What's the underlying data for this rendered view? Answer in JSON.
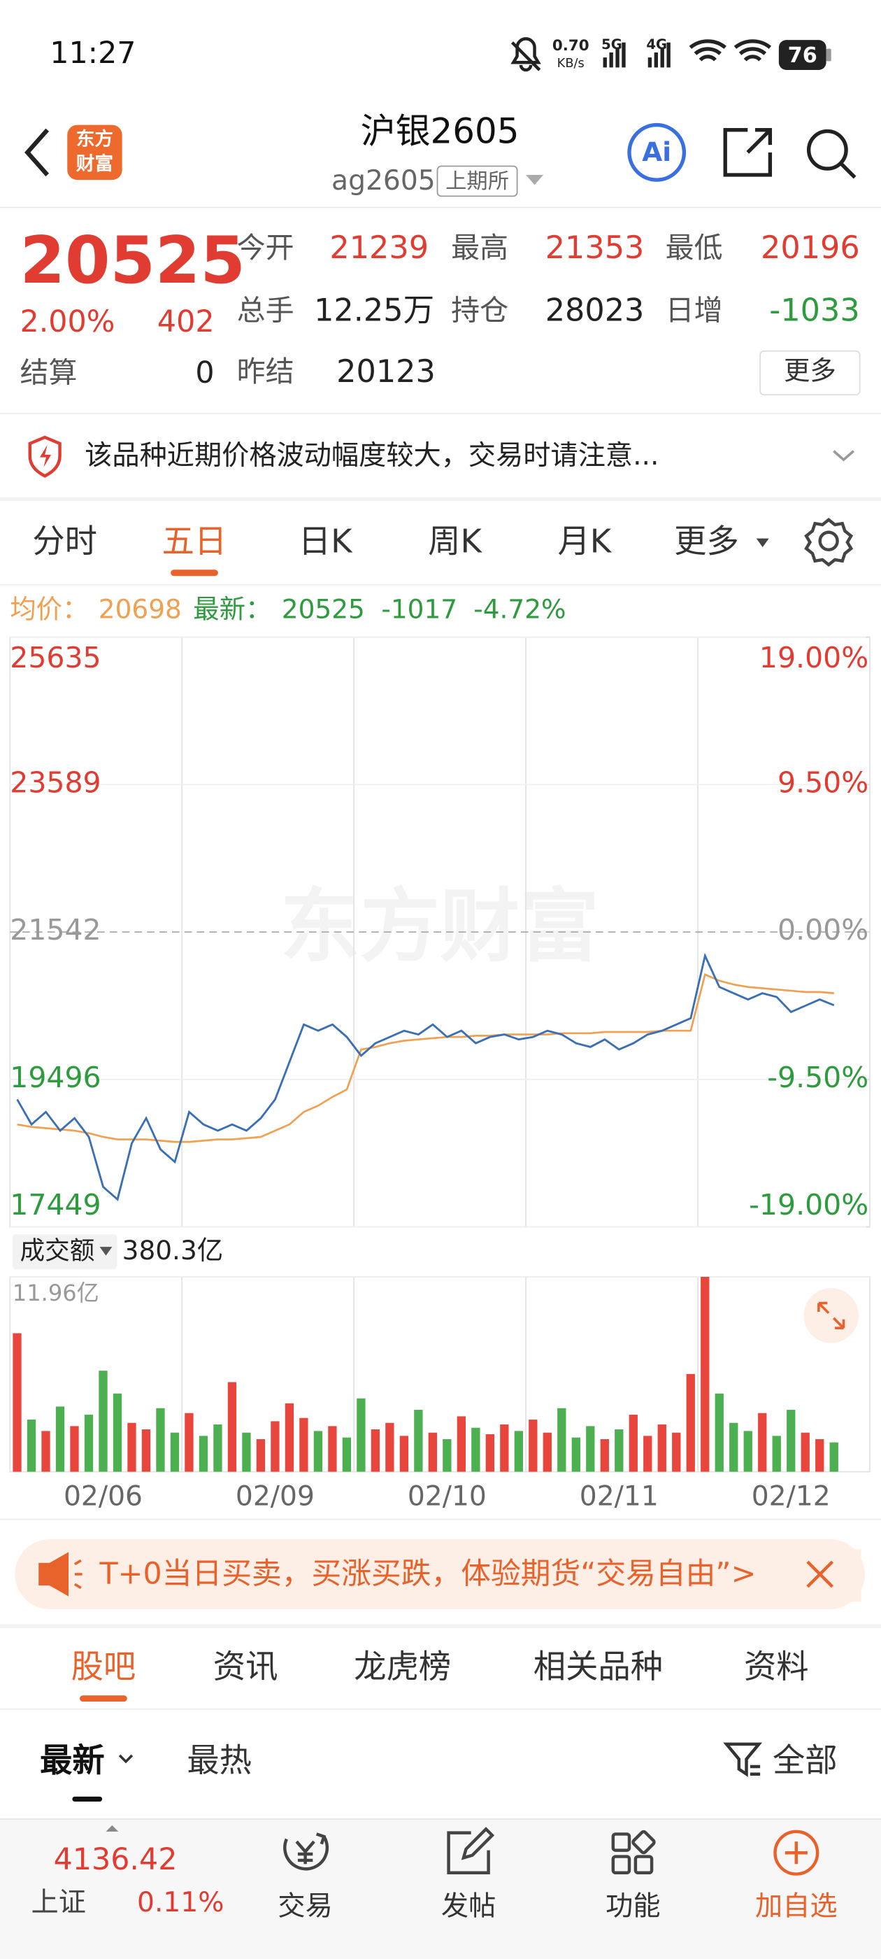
{
  "status_bar": {
    "time": "11:27",
    "net_speed": "0.70",
    "net_unit": "KB/s",
    "signal_1": "5G",
    "signal_2": "4G",
    "battery": "76"
  },
  "header": {
    "logo_top": "东方",
    "logo_bottom": "财富",
    "title": "沪银2605",
    "code": "ag2605",
    "exchange": "上期所",
    "ai": "Ai"
  },
  "quote": {
    "price": "20525",
    "change_pct": "2.00%",
    "change": "402",
    "settle_label": "结算",
    "settle": "0",
    "fields": [
      {
        "label": "今开",
        "value": "21239",
        "color": "#e03c31"
      },
      {
        "label": "最高",
        "value": "21353",
        "color": "#e03c31"
      },
      {
        "label": "最低",
        "value": "20196",
        "color": "#e03c31"
      },
      {
        "label": "总手",
        "value": "12.25万",
        "color": "#222222"
      },
      {
        "label": "持仓",
        "value": "28023",
        "color": "#222222"
      },
      {
        "label": "日增",
        "value": "-1033",
        "color": "#2e9b3e"
      },
      {
        "label": "昨结",
        "value": "20123",
        "color": "#222222"
      }
    ],
    "more": "更多"
  },
  "notice": "该品种近期价格波动幅度较大，交易时请注意...",
  "period_tabs": {
    "items": [
      "分时",
      "五日",
      "日K",
      "周K",
      "月K",
      "更多"
    ],
    "active": 1
  },
  "chart_data": [
    {
      "type": "line",
      "watermark": "东方财富",
      "legend": {
        "avg_label": "均价：",
        "avg_value": "20698",
        "last_label": "最新：",
        "last_value": "20525",
        "last_change": "-1017",
        "last_change_pct": "-4.72%"
      },
      "ylim": [
        17449,
        25635
      ],
      "yticks": [
        17449,
        19496,
        21542,
        23589,
        25635
      ],
      "y2lim": [
        -19,
        19
      ],
      "y2ticks": [
        {
          "value": -19,
          "label": "-19.00%"
        },
        {
          "value": -9.5,
          "label": "-9.50%"
        },
        {
          "value": 0,
          "label": "0.00%"
        },
        {
          "value": 9.5,
          "label": "9.50%"
        },
        {
          "value": 19,
          "label": "19.00%"
        }
      ],
      "up_color": "#e03c31",
      "down_color": "#2e9b3e",
      "flat_color": "#999999",
      "series": [
        {
          "color": "#3a6fb5",
          "values": [
            19218,
            18871,
            19045,
            18785,
            18958,
            18698,
            18004,
            17831,
            18611,
            18958,
            18524,
            18351,
            19045,
            18871,
            18785,
            18871,
            18785,
            18958,
            19218,
            19738,
            20259,
            20172,
            20259,
            20085,
            19825,
            19999,
            20085,
            20172,
            20120,
            20259,
            20085,
            20172,
            19999,
            20085,
            20120,
            20051,
            20085,
            20172,
            20120,
            19999,
            19947,
            20051,
            19912,
            19999,
            20120,
            20172,
            20259,
            20345,
            21213,
            20779,
            20692,
            20606,
            20692,
            20640,
            20432,
            20519,
            20606,
            20525,
            null,
            null
          ]
        },
        {
          "color": "#f0a050",
          "values": [
            18871,
            18837,
            18819,
            18802,
            18785,
            18750,
            18698,
            18663,
            18663,
            18663,
            18645,
            18628,
            18628,
            18645,
            18663,
            18663,
            18681,
            18698,
            18785,
            18871,
            19045,
            19131,
            19253,
            19357,
            19912,
            19947,
            19999,
            20033,
            20051,
            20068,
            20085,
            20085,
            20103,
            20103,
            20120,
            20120,
            20120,
            20120,
            20137,
            20137,
            20137,
            20155,
            20155,
            20155,
            20155,
            20172,
            20172,
            20172,
            20952,
            20866,
            20814,
            20779,
            20762,
            20745,
            20727,
            20710,
            20710,
            20692,
            null,
            null
          ]
        }
      ]
    },
    {
      "type": "bar",
      "selector": "成交额",
      "total": "380.3亿",
      "ylim": [
        0,
        11.96
      ],
      "yticks": [
        {
          "value": 11.96,
          "label": "11.96亿"
        }
      ],
      "up_color": "#e8453c",
      "down_color": "#4caf50",
      "categories": [
        null,
        null,
        null,
        null,
        null,
        null,
        "02/06",
        null,
        null,
        null,
        null,
        null,
        null,
        null,
        null,
        null,
        null,
        null,
        "02/09",
        null,
        null,
        null,
        null,
        null,
        null,
        null,
        null,
        null,
        null,
        null,
        "02/10",
        null,
        null,
        null,
        null,
        null,
        null,
        null,
        null,
        null,
        null,
        null,
        "02/11",
        null,
        null,
        null,
        null,
        null,
        null,
        null,
        null,
        null,
        null,
        null,
        "02/12",
        null,
        null,
        null,
        null,
        null
      ],
      "values": [
        8.5,
        3.2,
        2.5,
        4.0,
        2.8,
        3.5,
        6.2,
        4.8,
        3.0,
        2.6,
        3.9,
        2.4,
        3.6,
        2.2,
        2.9,
        5.5,
        2.4,
        2.0,
        3.1,
        4.2,
        3.3,
        2.5,
        2.8,
        2.1,
        4.5,
        2.6,
        3.0,
        2.2,
        3.8,
        2.4,
        2.0,
        3.4,
        2.7,
        2.3,
        2.9,
        2.5,
        3.2,
        2.4,
        3.9,
        2.1,
        2.8,
        2.0,
        2.6,
        3.5,
        2.2,
        2.9,
        2.4,
        6.0,
        11.96,
        4.8,
        3.0,
        2.5,
        3.6,
        2.2,
        3.8,
        2.4,
        2.0,
        1.8,
        null,
        null
      ]
    }
  ],
  "banner": "T+0当日买卖，买涨买跌，体验期货“交易自由”>",
  "content_tabs": {
    "items": [
      "股吧",
      "资讯",
      "龙虎榜",
      "相关品种",
      "资料"
    ],
    "active": 0
  },
  "sort": {
    "latest": "最新",
    "hot": "最热",
    "filter": "全部"
  },
  "bottom_nav": {
    "index_value": "4136.42",
    "index_name": "上证",
    "index_change": "0.11%",
    "items": [
      "交易",
      "发帖",
      "功能",
      "加自选"
    ]
  }
}
